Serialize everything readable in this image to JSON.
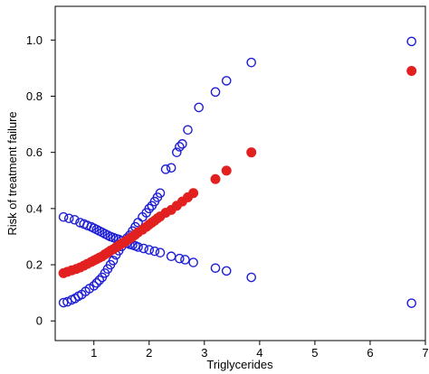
{
  "chart_data": {
    "type": "scatter",
    "xlabel": "Triglycerides",
    "ylabel": "Risk of treatment failure",
    "xlim": [
      0.3,
      7.0
    ],
    "ylim": [
      -0.07,
      1.12
    ],
    "x_ticks": [
      1,
      2,
      3,
      4,
      5,
      6,
      7
    ],
    "y_ticks": [
      0,
      0.2,
      0.4,
      0.6,
      0.8,
      1.0
    ],
    "y_tick_labels": [
      "0",
      "0.2",
      "0.4",
      "0.6",
      "0.8",
      "1.0"
    ],
    "grid": false,
    "series": [
      {
        "marker": "open-circle",
        "color": "#1f1fd6",
        "points": [
          [
            0.45,
            0.065
          ],
          [
            0.52,
            0.068
          ],
          [
            0.6,
            0.075
          ],
          [
            0.66,
            0.08
          ],
          [
            0.72,
            0.088
          ],
          [
            0.78,
            0.094
          ],
          [
            0.85,
            0.105
          ],
          [
            0.92,
            0.115
          ],
          [
            1.0,
            0.125
          ],
          [
            1.05,
            0.135
          ],
          [
            1.1,
            0.145
          ],
          [
            1.15,
            0.155
          ],
          [
            1.2,
            0.17
          ],
          [
            1.25,
            0.185
          ],
          [
            1.3,
            0.2
          ],
          [
            1.35,
            0.215
          ],
          [
            1.4,
            0.235
          ],
          [
            1.45,
            0.25
          ],
          [
            1.5,
            0.265
          ],
          [
            1.55,
            0.28
          ],
          [
            1.6,
            0.295
          ],
          [
            1.65,
            0.305
          ],
          [
            1.7,
            0.32
          ],
          [
            1.75,
            0.335
          ],
          [
            1.8,
            0.35
          ],
          [
            1.88,
            0.37
          ],
          [
            1.95,
            0.385
          ],
          [
            2.0,
            0.4
          ],
          [
            2.05,
            0.41
          ],
          [
            2.1,
            0.425
          ],
          [
            2.15,
            0.44
          ],
          [
            2.2,
            0.455
          ],
          [
            2.3,
            0.54
          ],
          [
            2.4,
            0.545
          ],
          [
            2.5,
            0.6
          ],
          [
            2.55,
            0.62
          ],
          [
            2.6,
            0.63
          ],
          [
            2.7,
            0.68
          ],
          [
            2.9,
            0.76
          ],
          [
            3.2,
            0.815
          ],
          [
            3.4,
            0.855
          ],
          [
            3.85,
            0.92
          ],
          [
            6.75,
            0.995
          ]
        ]
      },
      {
        "marker": "open-circle",
        "color": "#1f1fd6",
        "points": [
          [
            0.45,
            0.37
          ],
          [
            0.55,
            0.365
          ],
          [
            0.65,
            0.36
          ],
          [
            0.75,
            0.35
          ],
          [
            0.82,
            0.345
          ],
          [
            0.88,
            0.34
          ],
          [
            0.95,
            0.335
          ],
          [
            1.0,
            0.33
          ],
          [
            1.05,
            0.325
          ],
          [
            1.1,
            0.32
          ],
          [
            1.15,
            0.315
          ],
          [
            1.2,
            0.31
          ],
          [
            1.25,
            0.305
          ],
          [
            1.3,
            0.3
          ],
          [
            1.35,
            0.297
          ],
          [
            1.4,
            0.293
          ],
          [
            1.45,
            0.29
          ],
          [
            1.5,
            0.285
          ],
          [
            1.55,
            0.28
          ],
          [
            1.6,
            0.277
          ],
          [
            1.65,
            0.273
          ],
          [
            1.7,
            0.27
          ],
          [
            1.75,
            0.267
          ],
          [
            1.8,
            0.263
          ],
          [
            1.9,
            0.258
          ],
          [
            2.0,
            0.253
          ],
          [
            2.1,
            0.248
          ],
          [
            2.2,
            0.243
          ],
          [
            2.4,
            0.23
          ],
          [
            2.55,
            0.222
          ],
          [
            2.65,
            0.218
          ],
          [
            2.8,
            0.208
          ],
          [
            3.2,
            0.188
          ],
          [
            3.4,
            0.178
          ],
          [
            3.85,
            0.155
          ],
          [
            6.75,
            0.063
          ]
        ]
      },
      {
        "marker": "filled-circle",
        "color": "#e32020",
        "points": [
          [
            0.45,
            0.17
          ],
          [
            0.52,
            0.175
          ],
          [
            0.6,
            0.18
          ],
          [
            0.68,
            0.185
          ],
          [
            0.75,
            0.19
          ],
          [
            0.82,
            0.197
          ],
          [
            0.88,
            0.203
          ],
          [
            0.95,
            0.21
          ],
          [
            1.0,
            0.215
          ],
          [
            1.05,
            0.22
          ],
          [
            1.1,
            0.225
          ],
          [
            1.15,
            0.23
          ],
          [
            1.2,
            0.237
          ],
          [
            1.25,
            0.243
          ],
          [
            1.3,
            0.25
          ],
          [
            1.35,
            0.255
          ],
          [
            1.4,
            0.262
          ],
          [
            1.45,
            0.268
          ],
          [
            1.5,
            0.275
          ],
          [
            1.55,
            0.28
          ],
          [
            1.6,
            0.287
          ],
          [
            1.65,
            0.293
          ],
          [
            1.7,
            0.3
          ],
          [
            1.75,
            0.307
          ],
          [
            1.8,
            0.315
          ],
          [
            1.88,
            0.325
          ],
          [
            1.95,
            0.335
          ],
          [
            2.0,
            0.343
          ],
          [
            2.05,
            0.35
          ],
          [
            2.1,
            0.357
          ],
          [
            2.15,
            0.365
          ],
          [
            2.2,
            0.372
          ],
          [
            2.3,
            0.385
          ],
          [
            2.4,
            0.395
          ],
          [
            2.5,
            0.41
          ],
          [
            2.6,
            0.425
          ],
          [
            2.7,
            0.44
          ],
          [
            2.8,
            0.455
          ],
          [
            3.2,
            0.505
          ],
          [
            3.4,
            0.535
          ],
          [
            3.85,
            0.6
          ],
          [
            6.75,
            0.89
          ]
        ]
      }
    ]
  }
}
